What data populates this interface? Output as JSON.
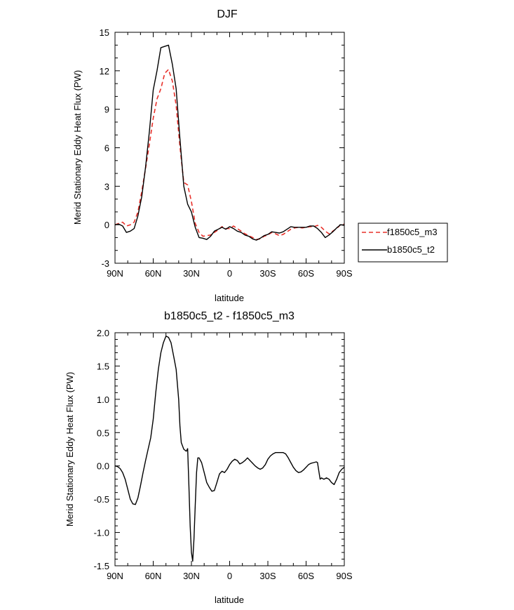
{
  "chart_data": [
    {
      "type": "line",
      "title": "DJF",
      "xlabel": "latitude",
      "ylabel": "Merid Stationary Eddy Heat Flux (PW)",
      "xlim": [
        90,
        -90
      ],
      "ylim": [
        -3,
        15
      ],
      "x_ticks": [
        90,
        60,
        30,
        0,
        -30,
        -60,
        -90
      ],
      "x_tick_labels": [
        "90N",
        "60N",
        "30N",
        "0",
        "30S",
        "60S",
        "90S"
      ],
      "y_ticks": [
        -3,
        0,
        3,
        6,
        9,
        12,
        15
      ],
      "y_tick_labels": [
        "-3",
        "0",
        "3",
        "6",
        "9",
        "12",
        "15"
      ],
      "legend": {
        "position": "right",
        "entries": [
          {
            "name": "f1850c5_m3",
            "color": "#e8302a",
            "style": "dashed"
          },
          {
            "name": "b1850c5_t2",
            "color": "#000000",
            "style": "solid"
          }
        ]
      },
      "series": [
        {
          "name": "f1850c5_m3",
          "color": "#e8302a",
          "dash": true,
          "x": [
            90,
            87,
            84,
            81,
            78,
            75,
            72,
            69,
            66,
            63,
            60,
            57,
            54,
            51,
            48,
            45,
            42,
            39,
            36,
            33,
            30,
            27,
            24,
            21,
            18,
            15,
            12,
            9,
            6,
            3,
            0,
            -3,
            -6,
            -9,
            -12,
            -15,
            -18,
            -21,
            -24,
            -27,
            -30,
            -33,
            -36,
            -39,
            -42,
            -45,
            -48,
            -51,
            -54,
            -57,
            -60,
            -63,
            -66,
            -69,
            -72,
            -75,
            -78,
            -81,
            -84,
            -87,
            -90
          ],
          "y": [
            0.0,
            0.1,
            0.2,
            -0.1,
            0.0,
            0.2,
            1.0,
            2.6,
            4.4,
            6.3,
            8.3,
            9.8,
            10.6,
            11.8,
            12.1,
            11.2,
            9.3,
            6.1,
            3.3,
            3.1,
            1.8,
            0.1,
            -0.6,
            -0.9,
            -0.85,
            -0.8,
            -0.6,
            -0.4,
            -0.15,
            -0.3,
            -0.3,
            -0.1,
            -0.3,
            -0.5,
            -0.7,
            -0.85,
            -1.0,
            -1.15,
            -1.1,
            -0.9,
            -0.8,
            -0.6,
            -0.7,
            -0.85,
            -0.75,
            -0.55,
            -0.35,
            -0.25,
            -0.2,
            -0.25,
            -0.2,
            -0.15,
            -0.15,
            -0.05,
            -0.2,
            -0.5,
            -0.7,
            -0.5,
            -0.3,
            0.0,
            0.05
          ]
        },
        {
          "name": "b1850c5_t2",
          "color": "#000000",
          "dash": false,
          "x": [
            90,
            87,
            84,
            81,
            78,
            75,
            72,
            69,
            66,
            63,
            60,
            57,
            54,
            51,
            48,
            45,
            42,
            39,
            36,
            33,
            30,
            27,
            24,
            21,
            18,
            15,
            12,
            9,
            6,
            3,
            0,
            -3,
            -6,
            -9,
            -12,
            -15,
            -18,
            -21,
            -24,
            -27,
            -30,
            -33,
            -36,
            -39,
            -42,
            -45,
            -48,
            -51,
            -54,
            -57,
            -60,
            -63,
            -66,
            -69,
            -72,
            -75,
            -78,
            -81,
            -84,
            -87,
            -90
          ],
          "y": [
            0.0,
            0.05,
            -0.1,
            -0.6,
            -0.5,
            -0.3,
            0.7,
            2.2,
            4.5,
            7.3,
            10.5,
            12.0,
            13.8,
            13.9,
            14.0,
            12.5,
            10.6,
            6.7,
            3.0,
            1.6,
            1.0,
            -0.2,
            -1.0,
            -1.05,
            -1.15,
            -0.9,
            -0.5,
            -0.35,
            -0.2,
            -0.35,
            -0.15,
            -0.3,
            -0.5,
            -0.6,
            -0.8,
            -0.9,
            -1.1,
            -1.2,
            -1.05,
            -0.85,
            -0.75,
            -0.55,
            -0.6,
            -0.65,
            -0.55,
            -0.35,
            -0.15,
            -0.2,
            -0.2,
            -0.2,
            -0.2,
            -0.1,
            -0.1,
            -0.3,
            -0.6,
            -1.0,
            -0.8,
            -0.55,
            -0.25,
            0.0,
            -0.05
          ]
        }
      ]
    },
    {
      "type": "line",
      "title": "b1850c5_t2 - f1850c5_m3",
      "xlabel": "latitude",
      "ylabel": "Merid Stationary Eddy Heat Flux (PW)",
      "xlim": [
        90,
        -90
      ],
      "ylim": [
        -1.5,
        2.0
      ],
      "x_ticks": [
        90,
        60,
        30,
        0,
        -30,
        -60,
        -90
      ],
      "x_tick_labels": [
        "90N",
        "60N",
        "30N",
        "0",
        "30S",
        "60S",
        "90S"
      ],
      "y_ticks": [
        -1.5,
        -1.0,
        -0.5,
        0.0,
        0.5,
        1.0,
        1.5,
        2.0
      ],
      "y_tick_labels": [
        "-1.5",
        "-1.0",
        "-0.5",
        "0.0",
        "0.5",
        "1.0",
        "1.5",
        "2.0"
      ],
      "series": [
        {
          "name": "b1850c5_t2 - f1850c5_m3",
          "color": "#000000",
          "dash": false,
          "x": [
            90,
            88,
            86,
            84,
            82,
            80,
            78,
            76,
            74,
            72,
            70,
            68,
            66,
            64,
            62,
            60,
            58,
            56,
            54,
            52,
            50,
            48,
            46,
            44,
            42,
            40,
            39,
            38,
            36,
            34,
            33,
            32,
            31,
            30,
            29,
            28,
            27,
            26,
            25,
            24,
            22,
            20,
            18,
            16,
            14,
            12,
            10,
            8,
            6,
            4,
            2,
            0,
            -2,
            -4,
            -6,
            -8,
            -10,
            -12,
            -14,
            -16,
            -18,
            -20,
            -22,
            -24,
            -26,
            -28,
            -30,
            -32,
            -34,
            -36,
            -38,
            -40,
            -42,
            -44,
            -46,
            -48,
            -50,
            -52,
            -54,
            -56,
            -58,
            -60,
            -62,
            -64,
            -66,
            -68,
            -69,
            -70,
            -71,
            -72,
            -74,
            -76,
            -78,
            -80,
            -82,
            -84,
            -86,
            -88,
            -90
          ],
          "y": [
            0.0,
            -0.01,
            -0.04,
            -0.1,
            -0.2,
            -0.35,
            -0.5,
            -0.57,
            -0.58,
            -0.48,
            -0.3,
            -0.1,
            0.08,
            0.25,
            0.42,
            0.7,
            1.1,
            1.45,
            1.7,
            1.85,
            1.95,
            1.93,
            1.85,
            1.65,
            1.45,
            1.0,
            0.6,
            0.35,
            0.25,
            0.22,
            0.26,
            -0.3,
            -0.9,
            -1.3,
            -1.43,
            -1.1,
            -0.6,
            -0.1,
            0.12,
            0.12,
            0.05,
            -0.1,
            -0.25,
            -0.32,
            -0.38,
            -0.37,
            -0.25,
            -0.12,
            -0.08,
            -0.1,
            -0.05,
            0.02,
            0.07,
            0.1,
            0.08,
            0.03,
            0.05,
            0.08,
            0.12,
            0.08,
            0.04,
            0.0,
            -0.03,
            -0.05,
            -0.03,
            0.02,
            0.1,
            0.15,
            0.18,
            0.2,
            0.2,
            0.2,
            0.2,
            0.18,
            0.12,
            0.05,
            -0.02,
            -0.07,
            -0.1,
            -0.09,
            -0.06,
            -0.02,
            0.02,
            0.04,
            0.05,
            0.06,
            0.05,
            -0.08,
            -0.2,
            -0.18,
            -0.2,
            -0.18,
            -0.2,
            -0.25,
            -0.28,
            -0.2,
            -0.1,
            -0.05,
            -0.02
          ]
        }
      ]
    }
  ]
}
